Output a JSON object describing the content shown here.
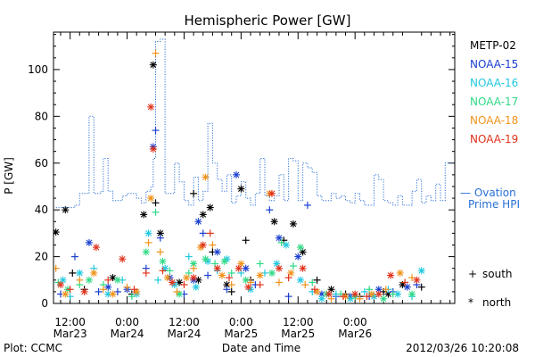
{
  "chart_data": {
    "type": "scatter",
    "title": "Hemispheric Power [GW]",
    "xlabel": "Date and Time",
    "ylabel": "P [GW]",
    "ylim": [
      0,
      116
    ],
    "xlim": [
      -3.5,
      81
    ],
    "x_units": "hours since 2012-03-23 12:00",
    "yticks": [
      0,
      20,
      40,
      60,
      80,
      100
    ],
    "xticks": [
      {
        "pos": 0,
        "line1": "12:00",
        "line2": "Mar23"
      },
      {
        "pos": 12,
        "line1": "0:00",
        "line2": "Mar24"
      },
      {
        "pos": 24,
        "line1": "12:00",
        "line2": "Mar24"
      },
      {
        "pos": 36,
        "line1": "0:00",
        "line2": "Mar25"
      },
      {
        "pos": 48,
        "line1": "12:00",
        "line2": "Mar25"
      },
      {
        "pos": 60,
        "line1": "0:00",
        "line2": "Mar26"
      }
    ],
    "minor_tick_step": 2,
    "grid": false,
    "legend_position": "right",
    "footer_left": "Plot: CCMC",
    "footer_right": "2012/03/26 10:20:08",
    "symbols": {
      "south": "+",
      "north": "*",
      "south_label": "south",
      "north_label": "north"
    },
    "series": [
      {
        "name": "METP-02",
        "color": "#000000"
      },
      {
        "name": "NOAA-15",
        "color": "#1a3fd1"
      },
      {
        "name": "NOAA-16",
        "color": "#21c8e0"
      },
      {
        "name": "NOAA-17",
        "color": "#2fd986"
      },
      {
        "name": "NOAA-18",
        "color": "#f0931c"
      },
      {
        "name": "NOAA-19",
        "color": "#e0331c"
      }
    ],
    "ovation": {
      "name": "Ovation Prime HPI",
      "label_line1": "— Ovation",
      "label_line2": "Prime HPI",
      "color": "#2a6fd6",
      "x": [
        -3,
        -1,
        1,
        2,
        3,
        4,
        5,
        6,
        6.5,
        7,
        8,
        9,
        10,
        11,
        12,
        13,
        14,
        15,
        16,
        17,
        17.5,
        18,
        19,
        20,
        21,
        22,
        23,
        24,
        25,
        26,
        27,
        28,
        29,
        30,
        31,
        32,
        33,
        34,
        35,
        36,
        37,
        38,
        39,
        40,
        41,
        42,
        43,
        44,
        45,
        46,
        47,
        48,
        49,
        50,
        51,
        52,
        53,
        54,
        55,
        56,
        57,
        58,
        59,
        60,
        61,
        62,
        63,
        64,
        65,
        66,
        67,
        68,
        69,
        70,
        71,
        72,
        73,
        74,
        75,
        76,
        77,
        78,
        79,
        80
      ],
      "y": [
        41,
        41,
        42,
        47,
        47,
        80,
        47,
        47,
        48,
        62,
        48,
        44,
        44,
        46,
        47,
        47,
        45,
        43,
        48,
        50,
        62,
        112,
        113,
        47,
        47,
        60,
        52,
        44,
        42,
        54,
        44,
        48,
        77,
        60,
        53,
        48,
        55,
        43,
        46,
        52,
        45,
        42,
        47,
        62,
        46,
        44,
        46,
        55,
        44,
        62,
        61,
        44,
        60,
        58,
        56,
        46,
        44,
        44,
        47,
        45,
        46,
        44,
        43,
        47,
        44,
        42,
        42,
        55,
        53,
        44,
        43,
        42,
        46,
        42,
        42,
        48,
        53,
        43,
        46,
        44,
        51,
        44,
        60,
        60
      ]
    },
    "points": [
      [
        "METP-02",
        -3,
        30.5,
        "n"
      ],
      [
        "METP-02",
        -1,
        40,
        "n"
      ],
      [
        "METP-02",
        0.5,
        13,
        "s"
      ],
      [
        "METP-02",
        3,
        6,
        "s"
      ],
      [
        "METP-02",
        9,
        11,
        "n"
      ],
      [
        "METP-02",
        13,
        4,
        "s"
      ],
      [
        "METP-02",
        15.5,
        38,
        "n"
      ],
      [
        "METP-02",
        17.5,
        102,
        "n"
      ],
      [
        "METP-02",
        18,
        43,
        "s"
      ],
      [
        "METP-02",
        19,
        30,
        "n"
      ],
      [
        "METP-02",
        23,
        9,
        "n"
      ],
      [
        "METP-02",
        26,
        47,
        "s"
      ],
      [
        "METP-02",
        27,
        10,
        "n"
      ],
      [
        "METP-02",
        28,
        38,
        "n"
      ],
      [
        "METP-02",
        29.5,
        41,
        "n"
      ],
      [
        "METP-02",
        30,
        22,
        "s"
      ],
      [
        "METP-02",
        33,
        8,
        "n"
      ],
      [
        "METP-02",
        34,
        5,
        "s"
      ],
      [
        "METP-02",
        36,
        49,
        "n"
      ],
      [
        "METP-02",
        37,
        27,
        "s"
      ],
      [
        "METP-02",
        38,
        10,
        "s"
      ],
      [
        "METP-02",
        43,
        35,
        "n"
      ],
      [
        "METP-02",
        45,
        27,
        "s"
      ],
      [
        "METP-02",
        47,
        34,
        "n"
      ],
      [
        "METP-02",
        49,
        22,
        "n"
      ],
      [
        "METP-02",
        52,
        10,
        "s"
      ],
      [
        "METP-02",
        55,
        6,
        "n"
      ],
      [
        "METP-02",
        58,
        4,
        "s"
      ],
      [
        "METP-02",
        61,
        3,
        "s"
      ],
      [
        "METP-02",
        64,
        3,
        "s"
      ],
      [
        "METP-02",
        66,
        5,
        "s"
      ],
      [
        "METP-02",
        67,
        4,
        "n"
      ],
      [
        "METP-02",
        70,
        8,
        "n"
      ],
      [
        "METP-02",
        74,
        7,
        "s"
      ],
      [
        "NOAA-15",
        -2,
        4,
        "s"
      ],
      [
        "NOAA-15",
        1,
        20,
        "s"
      ],
      [
        "NOAA-15",
        4,
        26,
        "n"
      ],
      [
        "NOAA-15",
        6,
        5,
        "s"
      ],
      [
        "NOAA-15",
        8,
        7,
        "n"
      ],
      [
        "NOAA-15",
        10,
        5,
        "s"
      ],
      [
        "NOAA-15",
        12,
        6,
        "n"
      ],
      [
        "NOAA-15",
        16,
        15,
        "s"
      ],
      [
        "NOAA-15",
        17.5,
        67,
        "n"
      ],
      [
        "NOAA-15",
        18,
        74,
        "s"
      ],
      [
        "NOAA-15",
        19,
        28,
        "s"
      ],
      [
        "NOAA-15",
        21,
        11,
        "n"
      ],
      [
        "NOAA-15",
        24,
        4,
        "s"
      ],
      [
        "NOAA-15",
        26,
        10,
        "n"
      ],
      [
        "NOAA-15",
        27,
        35,
        "n"
      ],
      [
        "NOAA-15",
        28,
        30,
        "s"
      ],
      [
        "NOAA-15",
        29,
        12,
        "s"
      ],
      [
        "NOAA-15",
        31,
        22,
        "n"
      ],
      [
        "NOAA-15",
        33,
        6,
        "s"
      ],
      [
        "NOAA-15",
        35,
        55,
        "n"
      ],
      [
        "NOAA-15",
        37,
        15,
        "n"
      ],
      [
        "NOAA-15",
        39,
        8,
        "s"
      ],
      [
        "NOAA-15",
        42,
        40,
        "s"
      ],
      [
        "NOAA-15",
        44,
        28,
        "n"
      ],
      [
        "NOAA-15",
        46,
        3,
        "s"
      ],
      [
        "NOAA-15",
        48,
        20,
        "n"
      ],
      [
        "NOAA-15",
        50,
        42,
        "s"
      ],
      [
        "NOAA-15",
        53,
        4,
        "n"
      ],
      [
        "NOAA-15",
        56,
        3,
        "s"
      ],
      [
        "NOAA-15",
        59,
        3,
        "n"
      ],
      [
        "NOAA-15",
        63,
        3,
        "s"
      ],
      [
        "NOAA-15",
        65,
        6,
        "n"
      ],
      [
        "NOAA-15",
        68,
        5,
        "s"
      ],
      [
        "NOAA-15",
        71,
        7,
        "n"
      ],
      [
        "NOAA-15",
        73,
        8,
        "s"
      ],
      [
        "NOAA-16",
        -1.5,
        10,
        "n"
      ],
      [
        "NOAA-16",
        0,
        3,
        "s"
      ],
      [
        "NOAA-16",
        2,
        13,
        "n"
      ],
      [
        "NOAA-16",
        5,
        15,
        "s"
      ],
      [
        "NOAA-16",
        8,
        4,
        "n"
      ],
      [
        "NOAA-16",
        11,
        10,
        "s"
      ],
      [
        "NOAA-16",
        14,
        4,
        "n"
      ],
      [
        "NOAA-16",
        16.5,
        30,
        "n"
      ],
      [
        "NOAA-16",
        18.5,
        10,
        "s"
      ],
      [
        "NOAA-16",
        20,
        15,
        "n"
      ],
      [
        "NOAA-16",
        22,
        8,
        "n"
      ],
      [
        "NOAA-16",
        25,
        20,
        "s"
      ],
      [
        "NOAA-16",
        26.5,
        7,
        "n"
      ],
      [
        "NOAA-16",
        29,
        18,
        "n"
      ],
      [
        "NOAA-16",
        31,
        14,
        "s"
      ],
      [
        "NOAA-16",
        33,
        19,
        "n"
      ],
      [
        "NOAA-16",
        36,
        13,
        "s"
      ],
      [
        "NOAA-16",
        38,
        6,
        "n"
      ],
      [
        "NOAA-16",
        41,
        13,
        "s"
      ],
      [
        "NOAA-16",
        43.5,
        17,
        "n"
      ],
      [
        "NOAA-16",
        45.5,
        25,
        "n"
      ],
      [
        "NOAA-16",
        48.5,
        10,
        "n"
      ],
      [
        "NOAA-16",
        51,
        5,
        "s"
      ],
      [
        "NOAA-16",
        53,
        2,
        "n"
      ],
      [
        "NOAA-16",
        56,
        4,
        "s"
      ],
      [
        "NOAA-16",
        59,
        2,
        "n"
      ],
      [
        "NOAA-16",
        62,
        5,
        "s"
      ],
      [
        "NOAA-16",
        64,
        3,
        "n"
      ],
      [
        "NOAA-16",
        67,
        6,
        "s"
      ],
      [
        "NOAA-16",
        69,
        4,
        "n"
      ],
      [
        "NOAA-16",
        72,
        3,
        "s"
      ],
      [
        "NOAA-16",
        74,
        14,
        "n"
      ],
      [
        "NOAA-17",
        -2.5,
        9,
        "s"
      ],
      [
        "NOAA-17",
        -0.5,
        6,
        "n"
      ],
      [
        "NOAA-17",
        2,
        8,
        "s"
      ],
      [
        "NOAA-17",
        4,
        10,
        "n"
      ],
      [
        "NOAA-17",
        7,
        8,
        "s"
      ],
      [
        "NOAA-17",
        10,
        10,
        "n"
      ],
      [
        "NOAA-17",
        13,
        3,
        "s"
      ],
      [
        "NOAA-17",
        16,
        22,
        "n"
      ],
      [
        "NOAA-17",
        18,
        39,
        "s"
      ],
      [
        "NOAA-17",
        19.5,
        18,
        "n"
      ],
      [
        "NOAA-17",
        21,
        14,
        "s"
      ],
      [
        "NOAA-17",
        23,
        4,
        "n"
      ],
      [
        "NOAA-17",
        25,
        13,
        "s"
      ],
      [
        "NOAA-17",
        26,
        17,
        "n"
      ],
      [
        "NOAA-17",
        28.5,
        19,
        "n"
      ],
      [
        "NOAA-17",
        30.5,
        17,
        "s"
      ],
      [
        "NOAA-17",
        32.5,
        18,
        "n"
      ],
      [
        "NOAA-17",
        34,
        13,
        "s"
      ],
      [
        "NOAA-17",
        37,
        10,
        "n"
      ],
      [
        "NOAA-17",
        40,
        17,
        "s"
      ],
      [
        "NOAA-17",
        42.5,
        13,
        "n"
      ],
      [
        "NOAA-17",
        44.5,
        26,
        "s"
      ],
      [
        "NOAA-17",
        47,
        16,
        "s"
      ],
      [
        "NOAA-17",
        48.5,
        24,
        "n"
      ],
      [
        "NOAA-17",
        51,
        9,
        "s"
      ],
      [
        "NOAA-17",
        54,
        4,
        "n"
      ],
      [
        "NOAA-17",
        57,
        4,
        "s"
      ],
      [
        "NOAA-17",
        60,
        3,
        "n"
      ],
      [
        "NOAA-17",
        63,
        6,
        "s"
      ],
      [
        "NOAA-17",
        66,
        2,
        "n"
      ],
      [
        "NOAA-17",
        68,
        4,
        "s"
      ],
      [
        "NOAA-17",
        72,
        4,
        "n"
      ],
      [
        "NOAA-18",
        -3,
        15,
        "s"
      ],
      [
        "NOAA-18",
        -1,
        4,
        "n"
      ],
      [
        "NOAA-18",
        2,
        10,
        "s"
      ],
      [
        "NOAA-18",
        5,
        13,
        "n"
      ],
      [
        "NOAA-18",
        7,
        6,
        "s"
      ],
      [
        "NOAA-18",
        9,
        4,
        "n"
      ],
      [
        "NOAA-18",
        12,
        7,
        "s"
      ],
      [
        "NOAA-18",
        14,
        5,
        "n"
      ],
      [
        "NOAA-18",
        16.5,
        26,
        "s"
      ],
      [
        "NOAA-18",
        17,
        45,
        "n"
      ],
      [
        "NOAA-18",
        18,
        107,
        "s"
      ],
      [
        "NOAA-18",
        19,
        22,
        "s"
      ],
      [
        "NOAA-18",
        20.5,
        11,
        "n"
      ],
      [
        "NOAA-18",
        22.5,
        5,
        "s"
      ],
      [
        "NOAA-18",
        24.5,
        11,
        "n"
      ],
      [
        "NOAA-18",
        26,
        15,
        "s"
      ],
      [
        "NOAA-18",
        27.5,
        24,
        "n"
      ],
      [
        "NOAA-18",
        28.5,
        54,
        "n"
      ],
      [
        "NOAA-18",
        30,
        25,
        "s"
      ],
      [
        "NOAA-18",
        32,
        12,
        "n"
      ],
      [
        "NOAA-18",
        34,
        8,
        "s"
      ],
      [
        "NOAA-18",
        36,
        17,
        "n"
      ],
      [
        "NOAA-18",
        38,
        9,
        "s"
      ],
      [
        "NOAA-18",
        40,
        12,
        "n"
      ],
      [
        "NOAA-18",
        42,
        47,
        "n"
      ],
      [
        "NOAA-18",
        44,
        9,
        "s"
      ],
      [
        "NOAA-18",
        46.5,
        13,
        "n"
      ],
      [
        "NOAA-18",
        49.5,
        8,
        "s"
      ],
      [
        "NOAA-18",
        52,
        5,
        "n"
      ],
      [
        "NOAA-18",
        55,
        2,
        "s"
      ],
      [
        "NOAA-18",
        58,
        3,
        "n"
      ],
      [
        "NOAA-18",
        61,
        2,
        "s"
      ],
      [
        "NOAA-18",
        63.5,
        4,
        "n"
      ],
      [
        "NOAA-18",
        66.5,
        6,
        "s"
      ],
      [
        "NOAA-18",
        69.5,
        13,
        "n"
      ],
      [
        "NOAA-18",
        72,
        11,
        "s"
      ],
      [
        "NOAA-19",
        -2,
        8,
        "n"
      ],
      [
        "NOAA-19",
        0,
        6,
        "s"
      ],
      [
        "NOAA-19",
        3,
        5,
        "n"
      ],
      [
        "NOAA-19",
        5.5,
        24,
        "n"
      ],
      [
        "NOAA-19",
        8,
        10,
        "s"
      ],
      [
        "NOAA-19",
        11,
        19,
        "n"
      ],
      [
        "NOAA-19",
        13.5,
        6,
        "s"
      ],
      [
        "NOAA-19",
        16,
        13,
        "s"
      ],
      [
        "NOAA-19",
        17,
        84,
        "n"
      ],
      [
        "NOAA-19",
        17.5,
        66,
        "n"
      ],
      [
        "NOAA-19",
        19.5,
        14,
        "s"
      ],
      [
        "NOAA-19",
        21.5,
        9,
        "n"
      ],
      [
        "NOAA-19",
        24,
        8,
        "s"
      ],
      [
        "NOAA-19",
        26,
        11,
        "n"
      ],
      [
        "NOAA-19",
        28,
        25,
        "n"
      ],
      [
        "NOAA-19",
        29.5,
        30,
        "s"
      ],
      [
        "NOAA-19",
        31,
        15,
        "n"
      ],
      [
        "NOAA-19",
        33.5,
        11,
        "s"
      ],
      [
        "NOAA-19",
        35.5,
        15,
        "n"
      ],
      [
        "NOAA-19",
        37.5,
        7,
        "n"
      ],
      [
        "NOAA-19",
        40,
        8,
        "s"
      ],
      [
        "NOAA-19",
        42.5,
        47,
        "n"
      ],
      [
        "NOAA-19",
        44,
        15,
        "n"
      ],
      [
        "NOAA-19",
        46,
        11,
        "s"
      ],
      [
        "NOAA-19",
        49,
        15,
        "n"
      ],
      [
        "NOAA-19",
        51.5,
        6,
        "s"
      ],
      [
        "NOAA-19",
        54.5,
        4,
        "n"
      ],
      [
        "NOAA-19",
        57.5,
        3,
        "s"
      ],
      [
        "NOAA-19",
        60,
        4,
        "n"
      ],
      [
        "NOAA-19",
        62.5,
        3,
        "s"
      ],
      [
        "NOAA-19",
        65,
        4,
        "n"
      ],
      [
        "NOAA-19",
        67.5,
        12,
        "n"
      ],
      [
        "NOAA-19",
        70.5,
        9,
        "s"
      ],
      [
        "NOAA-19",
        73,
        10,
        "n"
      ]
    ]
  }
}
